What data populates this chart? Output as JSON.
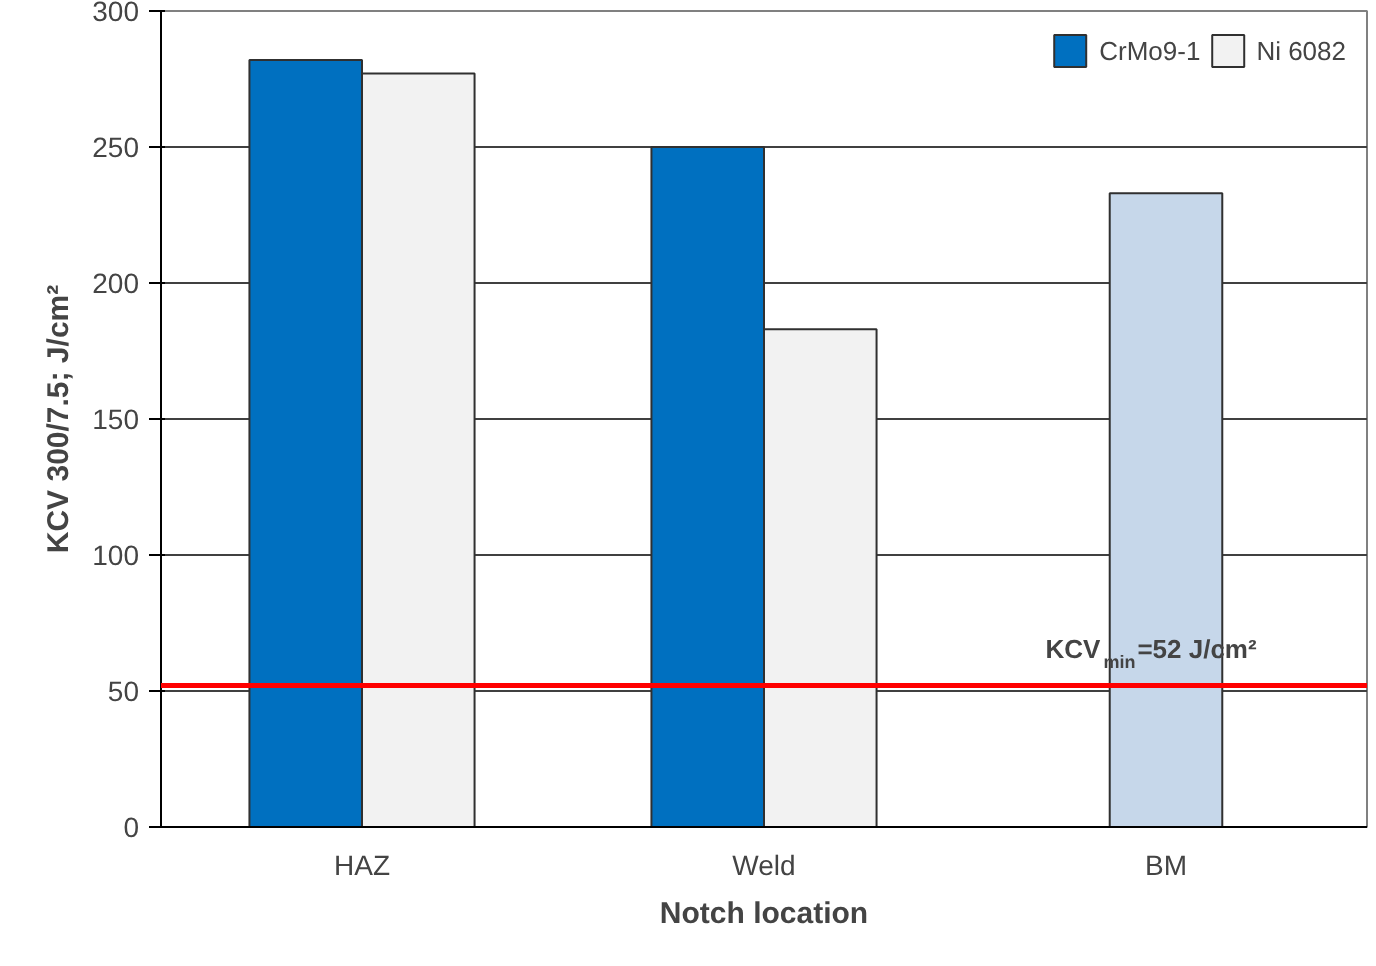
{
  "chart_data": {
    "type": "bar",
    "xlabel": "Notch location",
    "ylabel": "KCV 300/7.5; J/cm²",
    "categories": [
      "HAZ",
      "Weld",
      "BM"
    ],
    "series": [
      {
        "name": "CrMo9-1",
        "color": "#0070c0",
        "values": [
          282,
          250,
          null
        ]
      },
      {
        "name": "Ni 6082",
        "color": "#f2f2f2",
        "values": [
          277,
          183,
          null
        ]
      },
      {
        "color": "#c6d7ea",
        "values": [
          null,
          null,
          233
        ]
      }
    ],
    "ylim": [
      0,
      300
    ],
    "yticks": [
      0,
      50,
      100,
      150,
      200,
      250,
      300
    ],
    "grid": "y",
    "legend": "top right",
    "ref_lines": [
      {
        "axis": "y",
        "value": 52,
        "label": "KCV$_{min}$=52 J/cm²",
        "color": "#ff0000"
      }
    ]
  }
}
